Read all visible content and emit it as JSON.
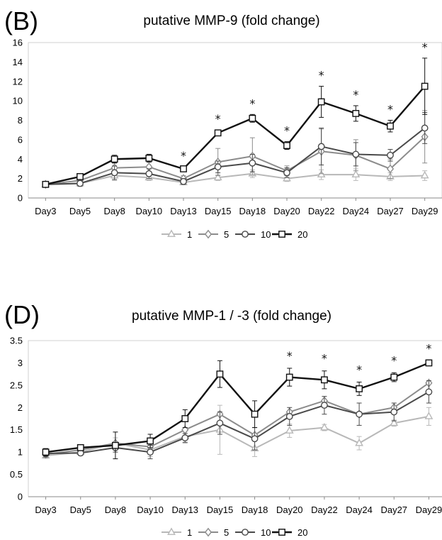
{
  "chart_data": [
    {
      "panel_label": "(B)",
      "type": "line",
      "title": "putative MMP-9 (fold change)",
      "xlabel": "",
      "ylabel": "",
      "categories": [
        "Day3",
        "Day5",
        "Day8",
        "Day10",
        "Day13",
        "Day15",
        "Day18",
        "Day20",
        "Day22",
        "Day24",
        "Day27",
        "Day29"
      ],
      "ylim": [
        0,
        16
      ],
      "yticks": [
        0,
        2,
        4,
        6,
        8,
        10,
        12,
        14,
        16
      ],
      "grid": false,
      "legend_position": "bottom",
      "series": [
        {
          "name": "1",
          "marker": "triangle",
          "color": "#b8b8b8",
          "values": [
            1.4,
            1.5,
            2.3,
            2.1,
            1.6,
            2.1,
            2.5,
            2.0,
            2.4,
            2.4,
            2.2,
            2.3
          ],
          "errors": [
            0.15,
            0.2,
            0.5,
            0.3,
            0.2,
            0.3,
            0.4,
            0.3,
            0.5,
            0.6,
            0.4,
            0.5
          ]
        },
        {
          "name": "5",
          "marker": "diamond",
          "color": "#8c8c8c",
          "values": [
            1.4,
            1.8,
            3.1,
            3.2,
            2.0,
            3.7,
            4.3,
            2.8,
            4.8,
            4.4,
            3.0,
            6.3
          ],
          "errors": [
            0.2,
            0.3,
            0.5,
            0.5,
            0.3,
            1.4,
            1.9,
            0.5,
            2.3,
            1.6,
            1.0,
            2.7
          ]
        },
        {
          "name": "10",
          "marker": "circle",
          "color": "#4a4a4a",
          "values": [
            1.4,
            1.5,
            2.6,
            2.5,
            1.7,
            3.2,
            3.6,
            2.6,
            5.3,
            4.5,
            4.4,
            7.2
          ],
          "errors": [
            0.15,
            0.3,
            0.7,
            0.5,
            0.3,
            0.6,
            0.9,
            0.5,
            1.9,
            1.2,
            0.6,
            1.6
          ]
        },
        {
          "name": "20",
          "marker": "square",
          "color": "#111111",
          "values": [
            1.4,
            2.2,
            4.0,
            4.1,
            3.0,
            6.7,
            8.2,
            5.4,
            9.9,
            8.7,
            7.4,
            11.5
          ],
          "errors": [
            0.2,
            0.3,
            0.4,
            0.4,
            0.2,
            0.3,
            0.4,
            0.4,
            1.6,
            0.8,
            0.6,
            2.9
          ]
        }
      ],
      "significance": [
        "",
        "",
        "",
        "",
        "*",
        "*",
        "*",
        "*",
        "*",
        "*",
        "*",
        "*"
      ]
    },
    {
      "panel_label": "(D)",
      "type": "line",
      "title": "putative MMP-1 / -3 (fold change)",
      "xlabel": "",
      "ylabel": "",
      "categories": [
        "Day3",
        "Day5",
        "Day8",
        "Day10",
        "Day13",
        "Day15",
        "Day18",
        "Day20",
        "Day22",
        "Day24",
        "Day27",
        "Day29"
      ],
      "ylim": [
        0,
        3.5
      ],
      "yticks": [
        0,
        0.5,
        1,
        1.5,
        2,
        2.5,
        3,
        3.5
      ],
      "grid": false,
      "legend_position": "bottom",
      "series": [
        {
          "name": "1",
          "marker": "triangle",
          "color": "#b8b8b8",
          "values": [
            0.92,
            1.0,
            1.2,
            1.05,
            1.35,
            1.5,
            1.08,
            1.48,
            1.55,
            1.2,
            1.65,
            1.8
          ],
          "errors": [
            0.06,
            0.08,
            0.12,
            0.15,
            0.15,
            0.55,
            0.18,
            0.15,
            0.07,
            0.15,
            0.07,
            0.2
          ]
        },
        {
          "name": "5",
          "marker": "diamond",
          "color": "#8c8c8c",
          "values": [
            0.95,
            1.05,
            1.2,
            1.12,
            1.5,
            1.85,
            1.38,
            1.9,
            2.15,
            1.85,
            2.0,
            2.55
          ]
        },
        {
          "name": "10",
          "marker": "circle",
          "color": "#4a4a4a",
          "values": [
            0.97,
            0.98,
            1.1,
            1.0,
            1.32,
            1.65,
            1.3,
            1.8,
            2.05,
            1.85,
            1.9,
            2.35
          ],
          "errors": [
            0.08,
            0.05,
            0.1,
            0.15,
            0.1,
            0.25,
            0.25,
            0.2,
            0.2,
            0.25,
            0.2,
            0.25
          ]
        },
        {
          "name": "20",
          "marker": "square",
          "color": "#111111",
          "values": [
            1.0,
            1.1,
            1.15,
            1.25,
            1.75,
            2.75,
            1.85,
            2.68,
            2.62,
            2.42,
            2.68,
            3.0
          ],
          "errors": [
            0.08,
            0.06,
            0.3,
            0.15,
            0.2,
            0.3,
            0.3,
            0.2,
            0.2,
            0.15,
            0.1,
            0.05
          ]
        }
      ],
      "significance": [
        "",
        "",
        "",
        "",
        "",
        "",
        "",
        "*",
        "*",
        "*",
        "*",
        "*"
      ]
    }
  ]
}
